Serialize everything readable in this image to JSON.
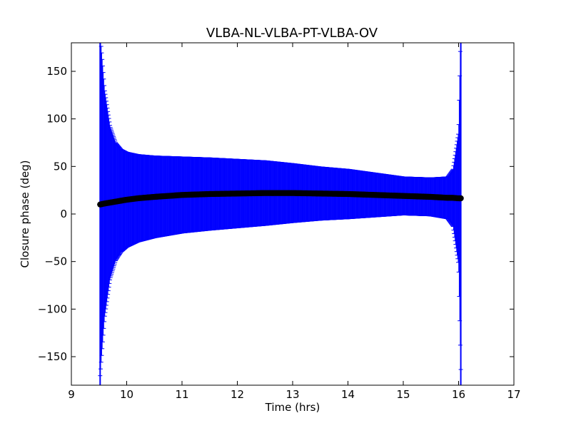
{
  "chart_data": {
    "type": "scatter",
    "title": "VLBA-NL-VLBA-PT-VLBA-OV",
    "xlabel": "Time (hrs)",
    "ylabel": "Closure phase (deg)",
    "xlim": [
      9,
      17
    ],
    "ylim": [
      -180,
      180
    ],
    "x_ticks": [
      9,
      10,
      11,
      12,
      13,
      14,
      15,
      16,
      17
    ],
    "y_ticks": [
      -150,
      -100,
      -50,
      0,
      50,
      100,
      150
    ],
    "grid": false,
    "legend": "none",
    "x_range": [
      9.52,
      16.04
    ],
    "series": [
      {
        "style": "points-with-errorbars",
        "x": [
          9.52,
          9.6,
          9.7,
          9.8,
          9.9,
          10.0,
          10.2,
          10.5,
          11.0,
          11.5,
          12.0,
          12.5,
          13.0,
          13.5,
          14.0,
          14.5,
          15.0,
          15.5,
          15.8,
          15.9,
          16.0,
          16.04
        ],
        "y": [
          10,
          11,
          12,
          13,
          14,
          15,
          16.5,
          18,
          20,
          21,
          21.5,
          22,
          22,
          21.5,
          21,
          20,
          19,
          18,
          17,
          17,
          16.5,
          16.5
        ],
        "err": [
          180,
          120,
          80,
          62,
          54,
          50,
          46,
          43,
          40,
          38,
          36,
          34,
          31,
          28,
          26,
          23,
          20,
          20,
          22,
          30,
          70,
          180
        ]
      }
    ],
    "colors": {
      "errorbar": "#0000ff",
      "point": "#000000"
    }
  }
}
